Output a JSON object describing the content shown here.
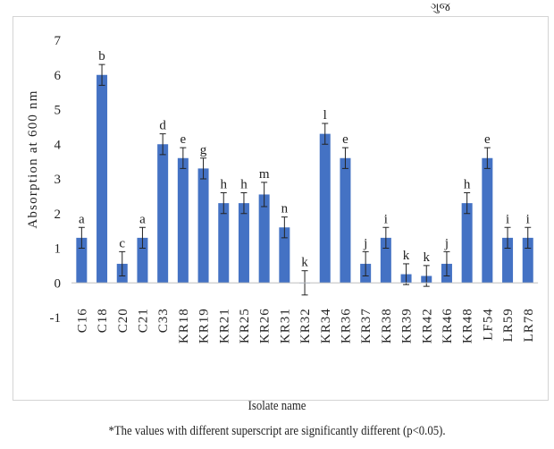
{
  "top_fragment": "ગુજ",
  "chart_data": {
    "type": "bar",
    "ylabel": "Absorption at 600 nm",
    "xlabel": "Isolate name",
    "footnote": "*The values with different superscript are significantly different (p<0.05).",
    "ylim": [
      -1,
      7
    ],
    "yticks": [
      -1,
      0,
      1,
      2,
      3,
      4,
      5,
      6,
      7
    ],
    "grid": false,
    "bar_color": "#4472c4",
    "categories": [
      "C16",
      "C18",
      "C20",
      "C21",
      "C33",
      "KR18",
      "KR19",
      "KR21",
      "KR25",
      "KR26",
      "KR31",
      "KR32",
      "KR34",
      "KR36",
      "KR37",
      "KR38",
      "KR39",
      "KR42",
      "KR46",
      "KR48",
      "LF54",
      "LR59",
      "LR78"
    ],
    "values": [
      1.3,
      6.0,
      0.55,
      1.3,
      4.0,
      3.6,
      3.3,
      2.3,
      2.3,
      2.55,
      1.6,
      0.0,
      4.3,
      3.6,
      0.55,
      1.3,
      0.25,
      0.2,
      0.55,
      2.3,
      3.6,
      1.3,
      1.3
    ],
    "errors": [
      0.3,
      0.3,
      0.35,
      0.3,
      0.3,
      0.3,
      0.3,
      0.3,
      0.3,
      0.35,
      0.3,
      0.35,
      0.3,
      0.3,
      0.35,
      0.3,
      0.3,
      0.3,
      0.35,
      0.3,
      0.3,
      0.3,
      0.3
    ],
    "labels": [
      "a",
      "b",
      "c",
      "a",
      "d",
      "e",
      "g",
      "h",
      "h",
      "m",
      "n",
      "k",
      "l",
      "e",
      "j",
      "i",
      "k",
      "k",
      "j",
      "h",
      "e",
      "i",
      "i"
    ]
  }
}
